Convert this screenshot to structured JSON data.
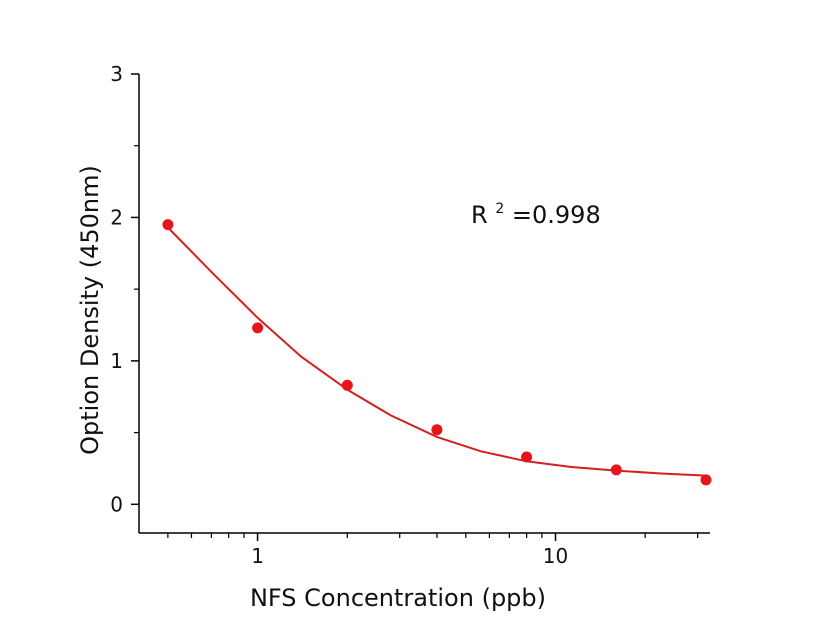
{
  "chart_data": {
    "type": "scatter",
    "title": "",
    "xlabel": "NFS Concentration (ppb)",
    "ylabel": "Option Density (450nm)",
    "x_scale": "log",
    "xlim": [
      0.4,
      33
    ],
    "ylim": [
      -0.2,
      3
    ],
    "x_ticks": [
      {
        "value": 1,
        "label": "1"
      },
      {
        "value": 10,
        "label": "10"
      }
    ],
    "y_ticks": [
      {
        "value": 0,
        "label": "0"
      },
      {
        "value": 1,
        "label": "1"
      },
      {
        "value": 2,
        "label": "2"
      },
      {
        "value": 3,
        "label": "3"
      }
    ],
    "grid": false,
    "legend": "none",
    "series": [
      {
        "kind": "points",
        "color": "#e8141c",
        "x": [
          0.5,
          1,
          2,
          4,
          8,
          16,
          32
        ],
        "y": [
          1.95,
          1.23,
          0.83,
          0.52,
          0.33,
          0.24,
          0.17
        ]
      },
      {
        "kind": "fit-curve",
        "color": "#d42020",
        "x": [
          0.5,
          0.7,
          1,
          1.4,
          2,
          2.8,
          4,
          5.6,
          8,
          11.3,
          16,
          22.6,
          32
        ],
        "y": [
          1.93,
          1.62,
          1.3,
          1.03,
          0.8,
          0.62,
          0.47,
          0.37,
          0.3,
          0.26,
          0.235,
          0.215,
          0.2
        ]
      }
    ],
    "annotation": {
      "base": "R",
      "sup": "2",
      "value": "=0.998"
    }
  }
}
